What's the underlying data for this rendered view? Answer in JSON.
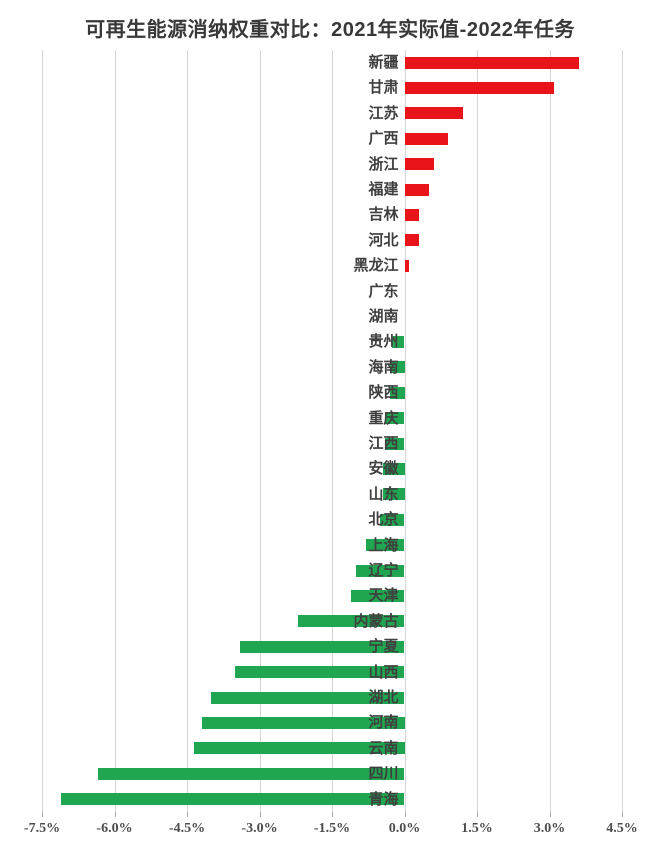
{
  "chart_data": {
    "type": "bar",
    "orientation": "horizontal",
    "title": "可再生能源消纳权重对比：2021年实际值-2022年任务",
    "unit": "%",
    "categories": [
      "新疆",
      "甘肃",
      "江苏",
      "广西",
      "浙江",
      "福建",
      "吉林",
      "河北",
      "黑龙江",
      "广东",
      "湖南",
      "贵州",
      "海南",
      "陕西",
      "重庆",
      "江西",
      "安徽",
      "山东",
      "北京",
      "上海",
      "辽宁",
      "天津",
      "内蒙古",
      "宁夏",
      "山西",
      "湖北",
      "河南",
      "云南",
      "四川",
      "青海"
    ],
    "values": [
      3.6,
      3.1,
      1.2,
      0.9,
      0.6,
      0.5,
      0.3,
      0.3,
      0.1,
      0,
      0,
      -0.25,
      -0.3,
      -0.3,
      -0.4,
      -0.4,
      -0.45,
      -0.45,
      -0.5,
      -0.8,
      -1.0,
      -1.1,
      -2.2,
      -3.4,
      -3.5,
      -4.0,
      -4.2,
      -4.35,
      -6.35,
      -7.1
    ],
    "xlim": [
      -7.5,
      4.5
    ],
    "x_ticks": [
      {
        "value": -7.5,
        "label": "-7.5%"
      },
      {
        "value": -6.0,
        "label": "-6.0%"
      },
      {
        "value": -4.5,
        "label": "-4.5%"
      },
      {
        "value": -3.0,
        "label": "-3.0%"
      },
      {
        "value": -1.5,
        "label": "-1.5%"
      },
      {
        "value": 0.0,
        "label": "0.0%"
      },
      {
        "value": 1.5,
        "label": "1.5%"
      },
      {
        "value": 3.0,
        "label": "3.0%"
      },
      {
        "value": 4.5,
        "label": "4.5%"
      }
    ],
    "grid": true,
    "legend": "none",
    "colors": {
      "positive_bar": "#e81419",
      "negative_bar": "#20a650",
      "gridline": "#d6d6d6",
      "tick_mark": "#a9a9a9",
      "axis_text": "#4d4d4d",
      "category_text": "#3f3f3f",
      "title_text": "#383838"
    }
  }
}
